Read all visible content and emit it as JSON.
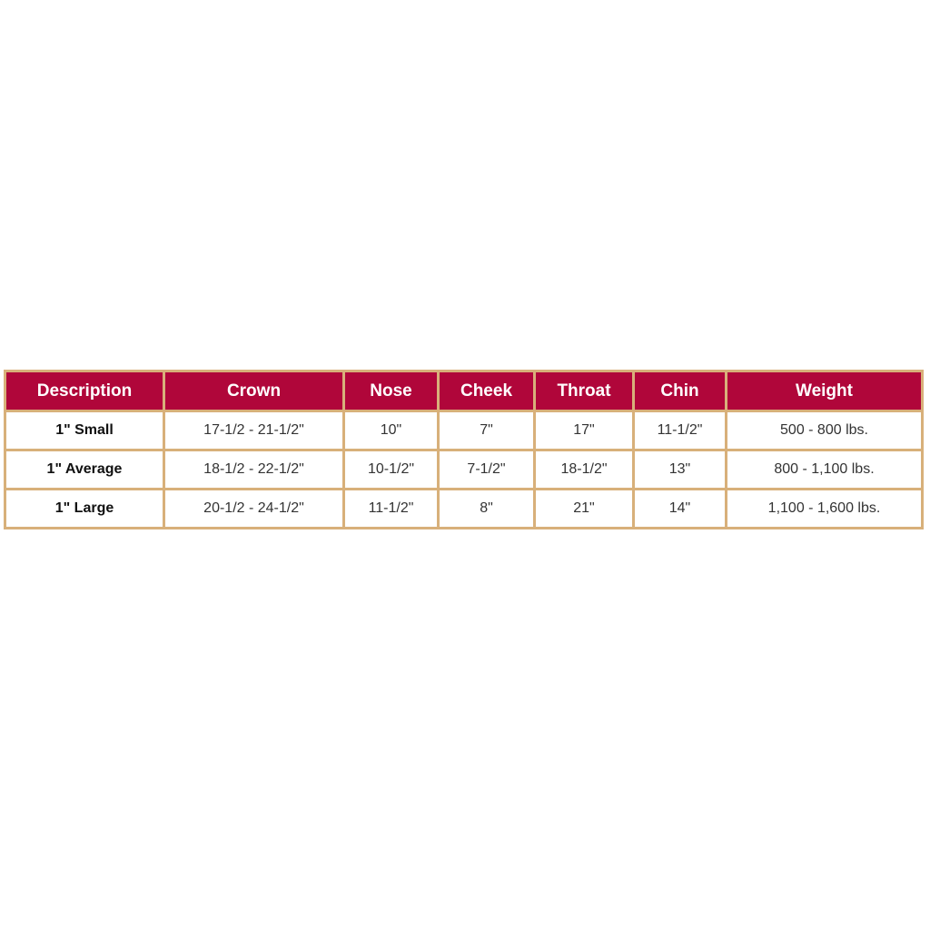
{
  "table": {
    "headers": [
      "Description",
      "Crown",
      "Nose",
      "Cheek",
      "Throat",
      "Chin",
      "Weight"
    ],
    "rows": [
      [
        "1\"  Small",
        "17-1/2 - 21-1/2\"",
        "10\"",
        "7\"",
        "17\"",
        "11-1/2\"",
        "500 - 800 lbs."
      ],
      [
        "1\" Average",
        "18-1/2 - 22-1/2\"",
        "10-1/2\"",
        "7-1/2\"",
        "18-1/2\"",
        "13\"",
        "800 - 1,100 lbs."
      ],
      [
        "1\" Large",
        "20-1/2 - 24-1/2\"",
        "11-1/2\"",
        "8\"",
        "21\"",
        "14\"",
        "1,100 - 1,600 lbs."
      ]
    ]
  },
  "colors": {
    "header_bg": "#b0063a",
    "border": "#d8b07a"
  }
}
